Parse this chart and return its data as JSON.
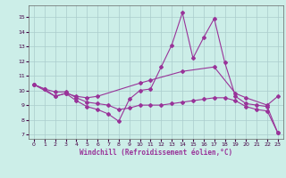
{
  "xlabel": "Windchill (Refroidissement éolien,°C)",
  "background_color": "#cceee8",
  "grid_color": "#aacccc",
  "line_color": "#993399",
  "xlim": [
    -0.5,
    23.5
  ],
  "ylim": [
    6.7,
    15.8
  ],
  "yticks": [
    7,
    8,
    9,
    10,
    11,
    12,
    13,
    14,
    15
  ],
  "xticks": [
    0,
    1,
    2,
    3,
    4,
    5,
    6,
    7,
    8,
    9,
    10,
    11,
    12,
    13,
    14,
    15,
    16,
    17,
    18,
    19,
    20,
    21,
    22,
    23
  ],
  "series1_x": [
    0,
    1,
    2,
    3,
    4,
    5,
    6,
    7,
    8,
    9,
    10,
    11,
    12,
    13,
    14,
    15,
    16,
    17,
    18,
    19,
    20,
    21,
    22,
    23
  ],
  "series1_y": [
    10.4,
    10.1,
    9.6,
    9.8,
    9.3,
    8.9,
    8.7,
    8.4,
    7.9,
    9.4,
    10.0,
    10.1,
    11.6,
    13.1,
    15.3,
    12.2,
    13.6,
    14.9,
    11.9,
    9.6,
    9.1,
    9.0,
    8.9,
    7.1
  ],
  "series2_x": [
    0,
    2,
    3,
    4,
    5,
    6,
    10,
    11,
    14,
    17,
    19,
    20,
    22,
    23
  ],
  "series2_y": [
    10.4,
    9.6,
    9.8,
    9.6,
    9.5,
    9.6,
    10.5,
    10.7,
    11.3,
    11.6,
    9.8,
    9.5,
    9.0,
    9.6
  ],
  "series3_x": [
    0,
    1,
    2,
    3,
    4,
    5,
    6,
    7,
    8,
    9,
    10,
    11,
    12,
    13,
    14,
    15,
    16,
    17,
    18,
    19,
    20,
    21,
    22,
    23
  ],
  "series3_y": [
    10.4,
    10.1,
    9.9,
    9.9,
    9.5,
    9.2,
    9.1,
    9.0,
    8.7,
    8.8,
    9.0,
    9.0,
    9.0,
    9.1,
    9.2,
    9.3,
    9.4,
    9.5,
    9.5,
    9.3,
    8.9,
    8.7,
    8.6,
    7.1
  ]
}
